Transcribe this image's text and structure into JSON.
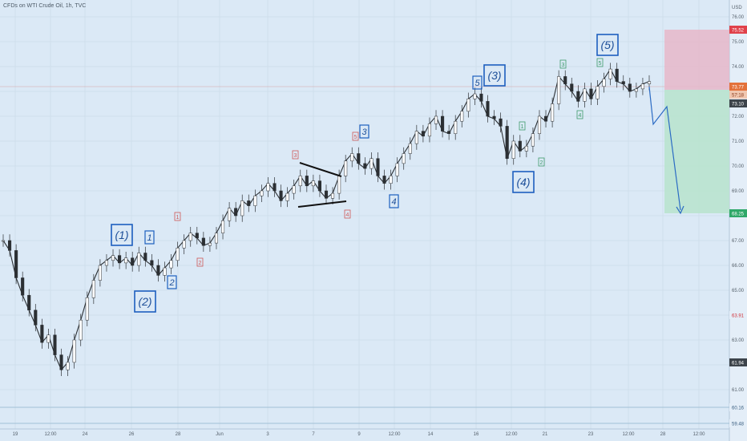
{
  "header": {
    "title": "CFDs on WTI Crude Oil, 1h, TVC",
    "currency": "USD"
  },
  "chart_data": {
    "type": "line",
    "title": "CFDs on WTI Crude Oil, 1h, TVC",
    "ylabel": "USD",
    "ylim": [
      58.4,
      76.8
    ],
    "y_ticks": [
      61.0,
      62.0,
      63.0,
      64.0,
      65.0,
      66.0,
      67.0,
      68.0,
      69.0,
      70.0,
      71.0,
      72.0,
      73.0,
      74.0,
      75.0,
      76.0
    ],
    "x_labels": [
      "19",
      "12:00",
      "24",
      "26",
      "28",
      "Jun",
      "3",
      "7",
      "9",
      "12:00",
      "14",
      "16",
      "12:00",
      "21",
      "23",
      "12:00",
      "28",
      "12:00"
    ],
    "series": [
      {
        "values": [
          67.0,
          66.6,
          65.5,
          64.8,
          64.2,
          63.6,
          62.9,
          63.2,
          62.4,
          61.8,
          62.1,
          63.0,
          63.8,
          64.7,
          65.4,
          66.0,
          66.2,
          66.4,
          66.1,
          66.3,
          66.0,
          66.5,
          66.2,
          66.0,
          65.6,
          65.9,
          66.2,
          66.7,
          67.0,
          67.3,
          67.1,
          66.8,
          66.9,
          67.3,
          67.8,
          68.3,
          68.0,
          68.6,
          68.4,
          68.8,
          69.0,
          69.3,
          69.0,
          68.6,
          68.9,
          69.2,
          69.6,
          69.2,
          69.4,
          69.0,
          68.7,
          68.9,
          69.6,
          70.2,
          70.5,
          70.1,
          69.9,
          70.3,
          69.6,
          69.3,
          69.6,
          70.1,
          70.5,
          70.9,
          71.4,
          71.2,
          71.7,
          72.0,
          71.4,
          71.3,
          71.8,
          72.2,
          72.7,
          72.9,
          72.6,
          72.0,
          71.9,
          71.6,
          70.3,
          71.0,
          70.6,
          70.8,
          71.3,
          72.0,
          71.8,
          72.5,
          73.6,
          73.3,
          73.0,
          72.6,
          73.1,
          72.7,
          73.2,
          73.5,
          73.9,
          73.4,
          73.3,
          73.0,
          73.1,
          73.3,
          73.4
        ]
      }
    ],
    "prices": {
      "high_box": "75.52",
      "top": "73.77",
      "small": "57:18",
      "current": "73.10",
      "low_box": "68.25",
      "level_63": "63.91",
      "level_61": "61.94",
      "level_60": "60.16",
      "level_59": "59.48"
    },
    "annotations": [
      "(1)",
      "(2)",
      "(3)",
      "(4)",
      "(5)",
      "1",
      "2",
      "3",
      "4",
      "5"
    ]
  }
}
